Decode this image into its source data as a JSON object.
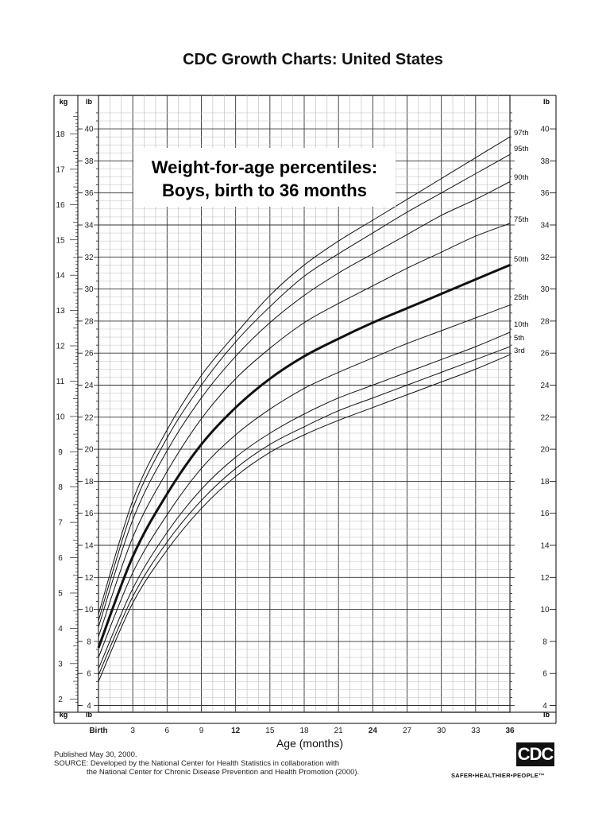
{
  "header": {
    "title": "CDC Growth Charts: United States"
  },
  "chart_data": {
    "type": "line",
    "title": "Weight-for-age percentiles:",
    "subtitle": "Boys, birth to 36 months",
    "xlabel": "Age (months)",
    "ylabel_left_primary": "kg",
    "ylabel_left_secondary": "lb",
    "ylabel_right": "lb",
    "xlim": [
      0,
      36
    ],
    "ylim_lb": [
      4,
      41
    ],
    "x_ticks": [
      {
        "value": 0,
        "label": "Birth",
        "bold": true
      },
      {
        "value": 3,
        "label": "3",
        "bold": false
      },
      {
        "value": 6,
        "label": "6",
        "bold": false
      },
      {
        "value": 9,
        "label": "9",
        "bold": false
      },
      {
        "value": 12,
        "label": "12",
        "bold": true
      },
      {
        "value": 15,
        "label": "15",
        "bold": false
      },
      {
        "value": 18,
        "label": "18",
        "bold": false
      },
      {
        "value": 21,
        "label": "21",
        "bold": false
      },
      {
        "value": 24,
        "label": "24",
        "bold": true
      },
      {
        "value": 27,
        "label": "27",
        "bold": false
      },
      {
        "value": 30,
        "label": "30",
        "bold": false
      },
      {
        "value": 33,
        "label": "33",
        "bold": false
      },
      {
        "value": 36,
        "label": "36",
        "bold": true
      }
    ],
    "lb_ticks": [
      {
        "value": 4,
        "label": "4"
      },
      {
        "value": 6,
        "label": "6"
      },
      {
        "value": 8,
        "label": "8"
      },
      {
        "value": 10,
        "label": "10"
      },
      {
        "value": 12,
        "label": "12"
      },
      {
        "value": 14,
        "label": "14"
      },
      {
        "value": 16,
        "label": "16"
      },
      {
        "value": 18,
        "label": "18"
      },
      {
        "value": 20,
        "label": "20"
      },
      {
        "value": 22,
        "label": "22"
      },
      {
        "value": 24,
        "label": "24"
      },
      {
        "value": 26,
        "label": "26"
      },
      {
        "value": 28,
        "label": "28"
      },
      {
        "value": 30,
        "label": "30"
      },
      {
        "value": 32,
        "label": "32"
      },
      {
        "value": 34,
        "label": "34"
      },
      {
        "value": 36,
        "label": "36"
      },
      {
        "value": 38,
        "label": "38"
      },
      {
        "value": 40,
        "label": "40"
      }
    ],
    "kg_ticks": [
      {
        "value": 2,
        "label": "2"
      },
      {
        "value": 3,
        "label": "3"
      },
      {
        "value": 4,
        "label": "4"
      },
      {
        "value": 5,
        "label": "5"
      },
      {
        "value": 6,
        "label": "6"
      },
      {
        "value": 7,
        "label": "7"
      },
      {
        "value": 8,
        "label": "8"
      },
      {
        "value": 9,
        "label": "9"
      },
      {
        "value": 10,
        "label": "10"
      },
      {
        "value": 11,
        "label": "11"
      },
      {
        "value": 12,
        "label": "12"
      },
      {
        "value": 13,
        "label": "13"
      },
      {
        "value": 14,
        "label": "14"
      },
      {
        "value": 15,
        "label": "15"
      },
      {
        "value": 16,
        "label": "16"
      },
      {
        "value": 17,
        "label": "17"
      },
      {
        "value": 18,
        "label": "18"
      }
    ],
    "x": [
      0,
      3,
      6,
      9,
      12,
      15,
      18,
      21,
      24,
      27,
      30,
      33,
      36
    ],
    "series": [
      {
        "name": "97th",
        "bold": false,
        "values": [
          9.7,
          16.8,
          21.2,
          24.6,
          27.2,
          29.6,
          31.5,
          33.0,
          34.3,
          35.6,
          36.9,
          38.2,
          39.5
        ]
      },
      {
        "name": "95th",
        "bold": false,
        "values": [
          9.3,
          16.3,
          20.7,
          24.0,
          26.7,
          28.9,
          30.8,
          32.2,
          33.5,
          34.8,
          36.0,
          37.2,
          38.4
        ]
      },
      {
        "name": "90th",
        "bold": false,
        "values": [
          8.9,
          15.6,
          19.9,
          23.2,
          25.8,
          27.9,
          29.6,
          31.0,
          32.2,
          33.4,
          34.6,
          35.6,
          36.7
        ]
      },
      {
        "name": "75th",
        "bold": false,
        "values": [
          8.3,
          14.5,
          18.6,
          21.9,
          24.4,
          26.3,
          27.9,
          29.1,
          30.2,
          31.3,
          32.3,
          33.3,
          34.1
        ]
      },
      {
        "name": "50th",
        "bold": true,
        "values": [
          7.6,
          13.3,
          17.2,
          20.3,
          22.6,
          24.4,
          25.8,
          26.9,
          27.9,
          28.8,
          29.7,
          30.6,
          31.5
        ]
      },
      {
        "name": "25th",
        "bold": false,
        "values": [
          7.0,
          12.3,
          15.9,
          18.8,
          20.9,
          22.5,
          23.8,
          24.8,
          25.7,
          26.6,
          27.4,
          28.2,
          29.0
        ]
      },
      {
        "name": "10th",
        "bold": false,
        "values": [
          6.3,
          11.3,
          14.8,
          17.5,
          19.5,
          21.0,
          22.2,
          23.2,
          24.0,
          24.8,
          25.6,
          26.4,
          27.3
        ]
      },
      {
        "name": "5th",
        "bold": false,
        "values": [
          5.9,
          10.8,
          14.2,
          16.8,
          18.8,
          20.3,
          21.4,
          22.4,
          23.2,
          24.0,
          24.8,
          25.6,
          26.4
        ]
      },
      {
        "name": "3rd",
        "bold": false,
        "values": [
          5.5,
          10.4,
          13.7,
          16.3,
          18.3,
          19.8,
          20.9,
          21.8,
          22.6,
          23.4,
          24.2,
          25.0,
          25.9
        ]
      }
    ],
    "grid": true
  },
  "footer": {
    "published": "Published May 30, 2000.",
    "source_line1": "SOURCE: Developed by the National Center for Health Statistics in collaboration with",
    "source_line2": "the National Center for Chronic Disease Prevention and Health Promotion (2000)."
  },
  "logo": {
    "text": "CDC",
    "tagline": "SAFER•HEALTHIER•PEOPLE™"
  }
}
